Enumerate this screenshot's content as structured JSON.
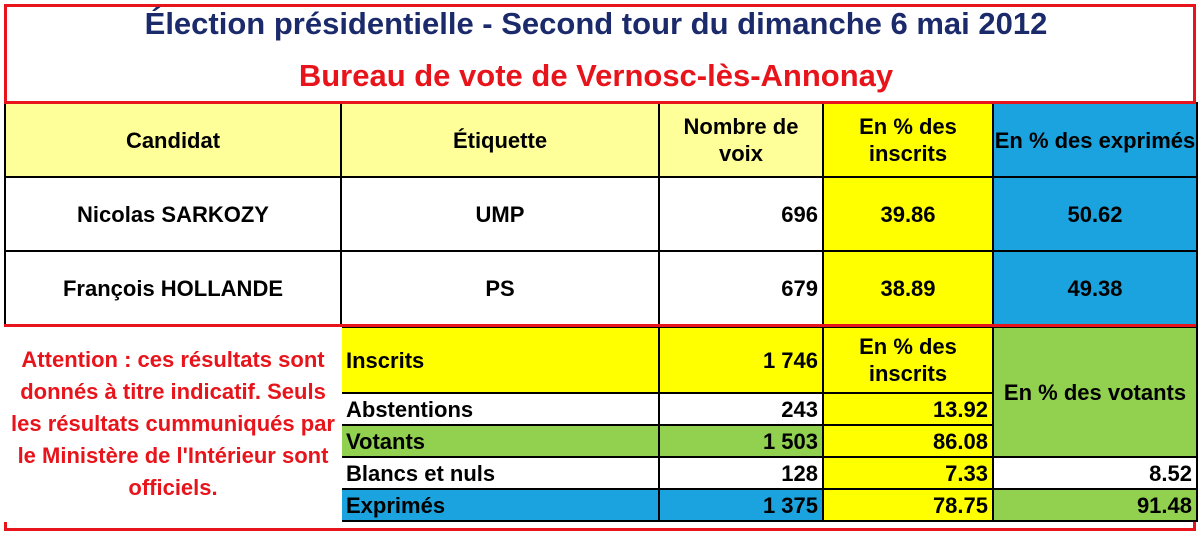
{
  "title": "Élection présidentielle - Second tour du dimanche 6 mai 2012",
  "subtitle": "Bureau de vote de Vernosc-lès-Annonay",
  "candidates_header": {
    "candidat": "Candidat",
    "etiquette": "Étiquette",
    "voix": "Nombre de voix",
    "pct_inscrits": "En % des inscrits",
    "pct_exprimes": "En % des exprimés"
  },
  "candidates": [
    {
      "name": "Nicolas SARKOZY",
      "party": "UMP",
      "votes": "696",
      "pct_inscrits": "39.86",
      "pct_exprimes": "50.62"
    },
    {
      "name": "François HOLLANDE",
      "party": "PS",
      "votes": "679",
      "pct_inscrits": "38.89",
      "pct_exprimes": "49.38"
    }
  ],
  "warning": "Attention : ces résultats sont donnés à titre indicatif. Seuls les résultats cummuniqués par le Ministère de l'Intérieur  sont officiels.",
  "stats_header": {
    "pct_inscrits": "En % des inscrits",
    "pct_votants": "En % des votants"
  },
  "stats": {
    "inscrits": {
      "label": "Inscrits",
      "value": "1 746"
    },
    "abstentions": {
      "label": "Abstentions",
      "value": "243",
      "pct_inscrits": "13.92"
    },
    "votants": {
      "label": "Votants",
      "value": "1 503",
      "pct_inscrits": "86.08"
    },
    "blancs": {
      "label": "Blancs et nuls",
      "value": "128",
      "pct_inscrits": "7.33",
      "pct_votants": "8.52"
    },
    "exprimes": {
      "label": "Exprimés",
      "value": "1 375",
      "pct_inscrits": "78.75",
      "pct_votants": "91.48"
    }
  },
  "colors": {
    "title": "#1b2a6b",
    "accent_red": "#e8141b",
    "yellow": "#ffff00",
    "light_yellow": "#ffff99",
    "blue": "#1ba3e0",
    "green": "#92d050"
  }
}
